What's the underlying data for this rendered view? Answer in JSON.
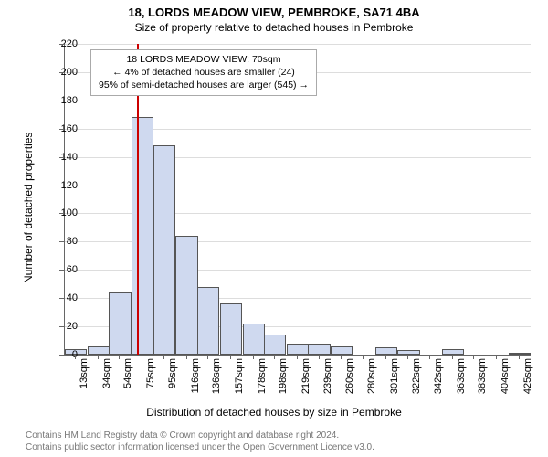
{
  "title_main": "18, LORDS MEADOW VIEW, PEMBROKE, SA71 4BA",
  "title_sub": "Size of property relative to detached houses in Pembroke",
  "chart": {
    "type": "histogram",
    "ylabel": "Number of detached properties",
    "xlabel": "Distribution of detached houses by size in Pembroke",
    "ylim": [
      0,
      220
    ],
    "ytick_step": 20,
    "bar_fill": "#cfd9ef",
    "bar_border": "#555555",
    "grid_color": "#dddddd",
    "background_color": "#ffffff",
    "ref_line_x": 70,
    "ref_line_color": "#cc0000",
    "categories": [
      "13sqm",
      "34sqm",
      "54sqm",
      "75sqm",
      "95sqm",
      "116sqm",
      "136sqm",
      "157sqm",
      "178sqm",
      "198sqm",
      "219sqm",
      "239sqm",
      "260sqm",
      "280sqm",
      "301sqm",
      "322sqm",
      "342sqm",
      "363sqm",
      "383sqm",
      "404sqm",
      "425sqm"
    ],
    "values": [
      4,
      6,
      44,
      168,
      148,
      84,
      48,
      36,
      22,
      14,
      8,
      8,
      6,
      0,
      5,
      3,
      0,
      4,
      0,
      0,
      1
    ],
    "x_range": [
      13,
      425
    ],
    "bar_width_units": 20.6
  },
  "annotation": {
    "line1": "18 LORDS MEADOW VIEW: 70sqm",
    "line2": "← 4% of detached houses are smaller (24)",
    "line3": "95% of semi-detached houses are larger (545) →"
  },
  "attribution": {
    "line1": "Contains HM Land Registry data © Crown copyright and database right 2024.",
    "line2": "Contains public sector information licensed under the Open Government Licence v3.0."
  },
  "fonts": {
    "title_size": 13,
    "subtitle_size": 12,
    "axis_label_size": 12,
    "tick_size": 11,
    "annotation_size": 10.5,
    "attribution_size": 10
  }
}
